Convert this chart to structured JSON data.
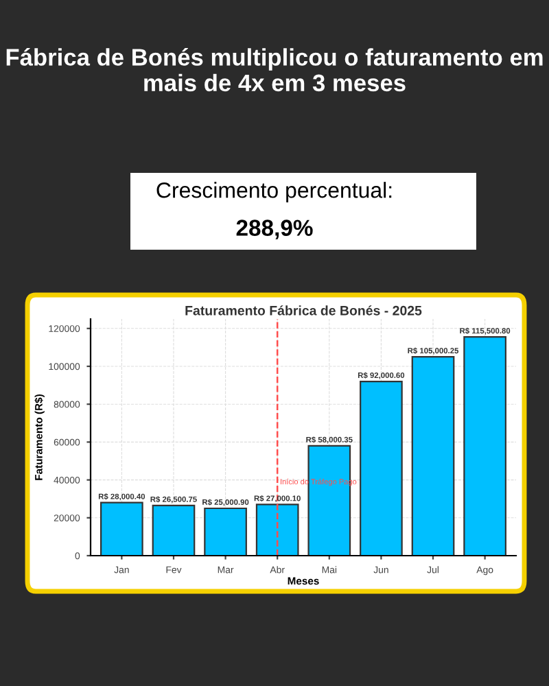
{
  "chart_data": {
    "type": "bar",
    "title": "Fábrica de Bonés multiplicou o faturamento em mais de 4x em 3 meses",
    "subtitle": "Faturamento Fábrica de Bonés - 2025",
    "xlabel": "Meses",
    "ylabel": "Faturamento (R$)",
    "categories": [
      "Jan",
      "Fev",
      "Mar",
      "Abr",
      "Mai",
      "Jun",
      "Jul",
      "Ago"
    ],
    "values": [
      28000.4,
      26500.75,
      25000.9,
      27000.1,
      58000.35,
      92000.6,
      105000.25,
      115500.8
    ],
    "value_labels": [
      "R$ 28,000.40",
      "R$ 26,500.75",
      "R$ 25,000.90",
      "R$ 27,000.10",
      "R$ 58,000.35",
      "R$ 92,000.60",
      "R$ 105,000.25",
      "R$ 115,500.80"
    ],
    "color": "#00bfff",
    "ylim": [
      0,
      125000
    ],
    "yticks": [
      0,
      20000,
      40000,
      60000,
      80000,
      100000,
      120000
    ],
    "grid": true,
    "ref_lines": [
      {
        "axis": "x",
        "value": "Abr",
        "label": "Início do Tráfego Pago",
        "color": "#ff4d4d",
        "line_style": "dashed"
      }
    ],
    "annotations": [
      "Crescimento percentual:",
      "288,9%"
    ]
  }
}
